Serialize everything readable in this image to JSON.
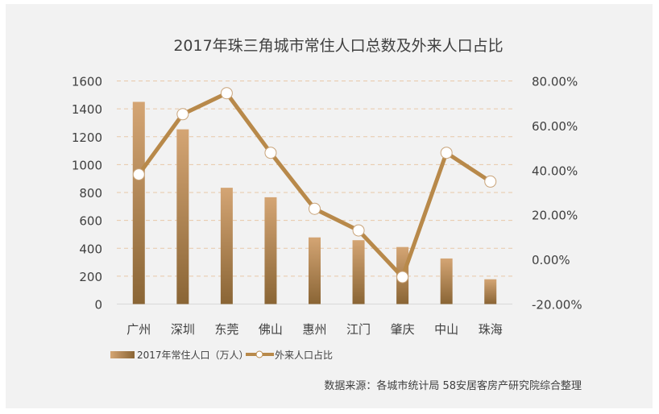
{
  "chart_data": {
    "type": "bar+line",
    "title": "2017年珠三角城市常住人口总数及外来人口占比",
    "categories": [
      "广州",
      "深圳",
      "东莞",
      "佛山",
      "惠州",
      "江门",
      "肇庆",
      "中山",
      "珠海"
    ],
    "series": [
      {
        "name": "2017年常住人口（万人）",
        "type": "bar",
        "axis": "left",
        "values": [
          1450,
          1253,
          834,
          766,
          478,
          458,
          409,
          327,
          178
        ]
      },
      {
        "name": "外来人口占比",
        "type": "line",
        "axis": "right",
        "values": [
          38.1,
          65.1,
          74.5,
          47.8,
          22.7,
          13.0,
          -7.9,
          47.8,
          34.9
        ]
      }
    ],
    "left_axis": {
      "ylim": [
        0,
        1600
      ],
      "ticks": [
        "0",
        "200",
        "400",
        "600",
        "800",
        "1000",
        "1200",
        "1400",
        "1600"
      ]
    },
    "right_axis": {
      "ylim": [
        -20,
        80
      ],
      "ticks": [
        "-20.00%",
        "0.00%",
        "20.00%",
        "40.00%",
        "60.00%",
        "80.00%"
      ]
    },
    "grid": true,
    "legend_placement": "bottom-left",
    "colors": {
      "bar_top": "#d4a574",
      "bar_bottom": "#8a6535",
      "line": "#b8894a",
      "marker_fill": "#ffffff",
      "grid": "#e8c8a8"
    },
    "source": "数据来源：各城市统计局 58安居客房产研究院综合整理"
  }
}
